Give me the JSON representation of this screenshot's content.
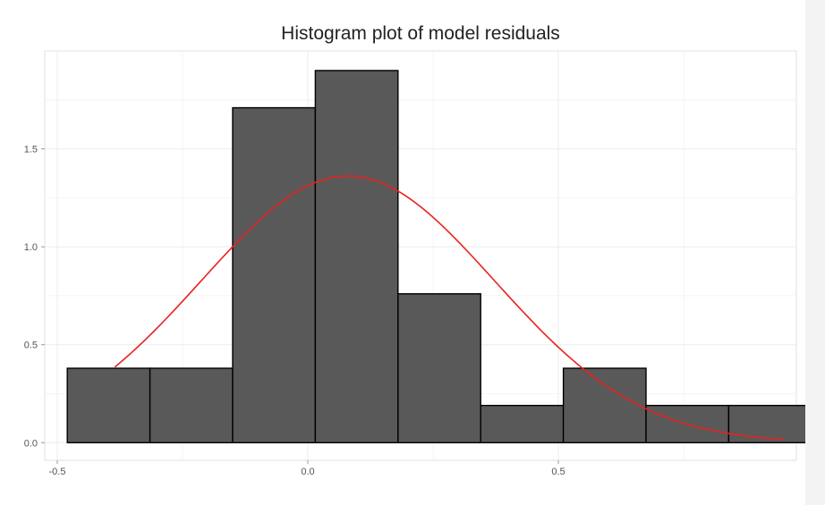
{
  "chart_data": {
    "type": "bar",
    "title": "Histogram plot of model residuals",
    "xlabel": "",
    "ylabel": "",
    "xlim": [
      -0.525,
      0.975
    ],
    "ylim": [
      -0.09,
      2.0
    ],
    "x_ticks": [
      -0.5,
      0.0,
      0.5
    ],
    "x_tick_labels": [
      "-0.5",
      "0.0",
      "0.5"
    ],
    "y_ticks": [
      0.0,
      0.5,
      1.0,
      1.5
    ],
    "y_tick_labels": [
      "0.0",
      "0.5",
      "1.0",
      "1.5"
    ],
    "grid": true,
    "bins": [
      {
        "x0": -0.48,
        "x1": -0.315,
        "value": 0.38
      },
      {
        "x0": -0.315,
        "x1": -0.15,
        "value": 0.38
      },
      {
        "x0": -0.15,
        "x1": 0.015,
        "value": 1.71
      },
      {
        "x0": 0.015,
        "x1": 0.18,
        "value": 1.9
      },
      {
        "x0": 0.18,
        "x1": 0.345,
        "value": 0.76
      },
      {
        "x0": 0.345,
        "x1": 0.51,
        "value": 0.19
      },
      {
        "x0": 0.51,
        "x1": 0.675,
        "value": 0.38
      },
      {
        "x0": 0.675,
        "x1": 0.84,
        "value": 0.19
      },
      {
        "x0": 0.84,
        "x1": 1.005,
        "value": 0.19
      }
    ],
    "density_curve": {
      "type": "normal",
      "mean": 0.08,
      "sd": 0.293,
      "x_range": [
        -0.385,
        0.95
      ],
      "color": "#e8211f"
    },
    "bar_fill": "#595959",
    "bar_stroke": "#000000"
  }
}
